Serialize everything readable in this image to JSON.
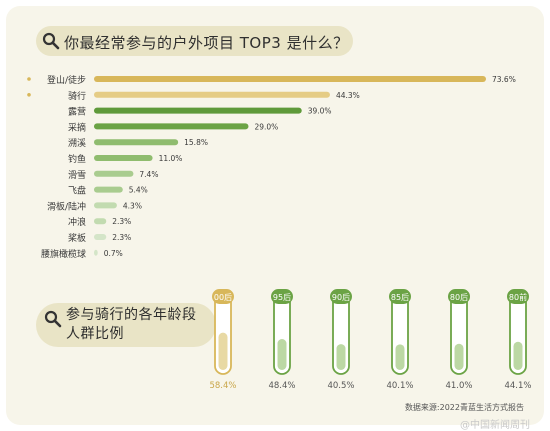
{
  "title1": "你最经常参与的户外项目 TOP3 是什么？",
  "title2": "参与骑行的各年龄段人群比例",
  "source": "数据来源:2022青蓝生活方式报告",
  "watermark": "@中国新闻周刊",
  "chart_data": [
    {
      "type": "bar",
      "orientation": "horizontal",
      "title": "你最经常参与的户外项目 TOP3 是什么？",
      "categories": [
        "登山/徒步",
        "骑行",
        "露营",
        "采摘",
        "溯溪",
        "钓鱼",
        "滑雪",
        "飞盘",
        "滑板/陆冲",
        "冲浪",
        "桨板",
        "腰旗橄榄球"
      ],
      "values": [
        73.6,
        44.3,
        39.0,
        29.0,
        15.8,
        11.0,
        7.4,
        5.4,
        4.3,
        2.3,
        2.3,
        0.7
      ],
      "value_labels": [
        "73.6%",
        "44.3%",
        "39.0%",
        "29.0%",
        "15.8%",
        "11.0%",
        "7.4%",
        "5.4%",
        "4.3%",
        "2.3%",
        "2.3%",
        "0.7%"
      ],
      "unit": "%",
      "highlight_top": 2,
      "colors": [
        "#d8b75a",
        "#e5cc85",
        "#5f9a3a",
        "#6ba345",
        "#8fbc6e",
        "#8fbc6e",
        "#a9cc8f",
        "#a9cc8f",
        "#c2dbb0",
        "#c2dbb0",
        "#d4e5c8",
        "#d4e5c8"
      ]
    },
    {
      "type": "bar",
      "style": "thermometer",
      "title": "参与骑行的各年龄段人群比例",
      "categories": [
        "00后",
        "95后",
        "90后",
        "85后",
        "80后",
        "80前"
      ],
      "values": [
        58.4,
        48.4,
        40.5,
        40.1,
        41.0,
        44.1
      ],
      "value_labels": [
        "58.4%",
        "48.4%",
        "40.5%",
        "40.1%",
        "41.0%",
        "44.1%"
      ],
      "unit": "%",
      "highlight_index": 0,
      "colors": {
        "highlight": "#d8b75a",
        "normal": "#6ba345",
        "fill_highlight": "#e8d9a4",
        "fill_normal": "#bcd8a4"
      }
    }
  ]
}
